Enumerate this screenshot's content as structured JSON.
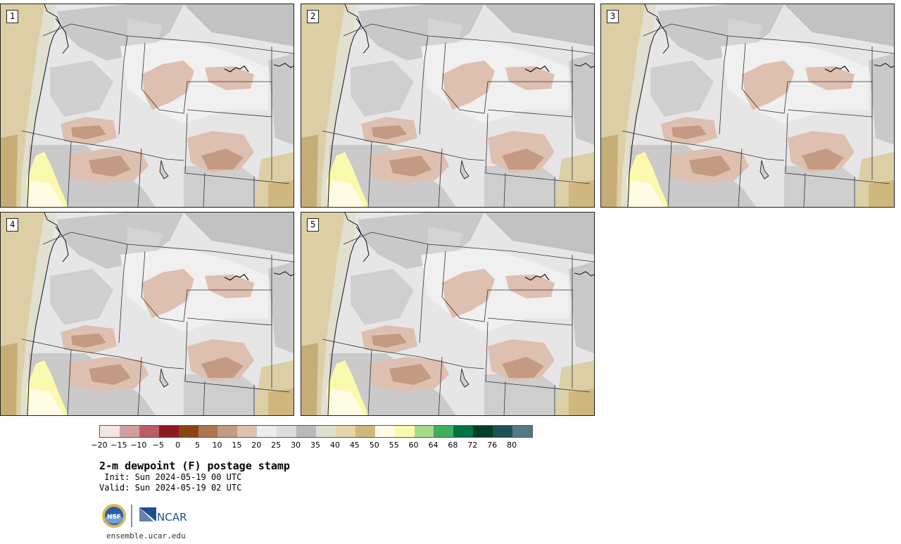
{
  "panels": [
    {
      "label": "1"
    },
    {
      "label": "2"
    },
    {
      "label": "3"
    },
    {
      "label": "4"
    },
    {
      "label": "5"
    }
  ],
  "colorbar": {
    "colors": [
      "#f5e5e2",
      "#d29fa2",
      "#b75f65",
      "#8c1a21",
      "#8a4412",
      "#ad7652",
      "#c49b82",
      "#dec0b0",
      "#ececec",
      "#dcdcdc",
      "#b9b9b9",
      "#e1dfcf",
      "#e5d3a9",
      "#cfb77d",
      "#fffce4",
      "#fbf9ad",
      "#a2dc8b",
      "#43ad5d",
      "#007142",
      "#003f2b",
      "#1b5157",
      "#507c80"
    ],
    "ticks": [
      "−20",
      "−15",
      "−10",
      "−5",
      "0",
      "5",
      "10",
      "15",
      "20",
      "25",
      "30",
      "35",
      "40",
      "45",
      "50",
      "55",
      "60",
      "64",
      "68",
      "72",
      "76",
      "80"
    ]
  },
  "title": "2-m dewpoint (F) postage stamp",
  "init": " Init: Sun 2024-05-19 00 UTC",
  "valid": "Valid: Sun 2024-05-19 02 UTC",
  "logos": {
    "nsf": "NSF",
    "ncar": "NCAR"
  },
  "site": "ensemble.ucar.edu"
}
